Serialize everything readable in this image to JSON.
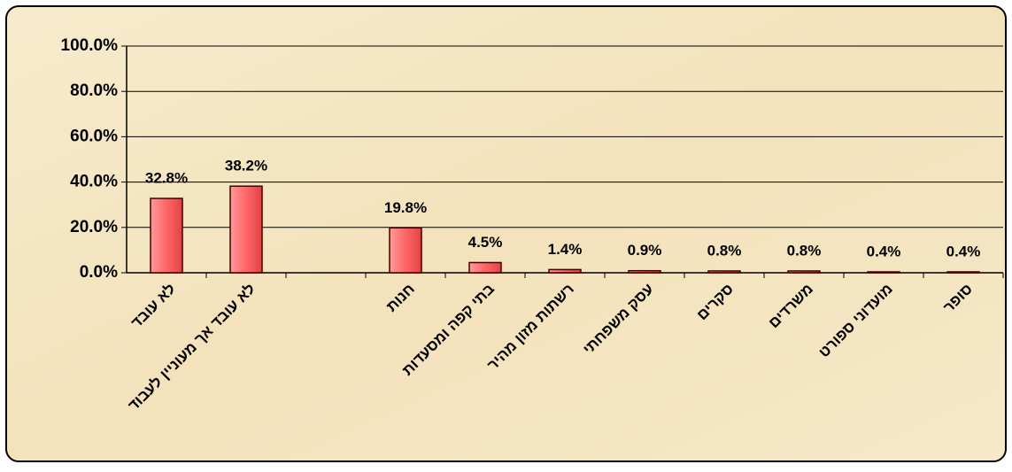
{
  "chart_data": {
    "type": "bar",
    "categories": [
      "לא עובד",
      "לא עובד אך מעוניין לעבוד",
      null,
      "חנות",
      "בתי קפה ומסעדות",
      "רשתות מזון מהיר",
      "עסק משפחתי",
      "סקרים",
      "משרדים",
      "מועדוני ספורט",
      "סופר"
    ],
    "values": [
      32.8,
      38.2,
      null,
      19.8,
      4.5,
      1.4,
      0.9,
      0.8,
      0.8,
      0.4,
      0.4
    ],
    "value_labels": [
      "32.8%",
      "38.2%",
      null,
      "19.8%",
      "4.5%",
      "1.4%",
      "0.9%",
      "0.8%",
      "0.8%",
      "0.4%",
      "0.4%"
    ],
    "color": "#ff6666",
    "ylim": [
      0,
      100
    ],
    "yticks": [
      {
        "value": 0,
        "label": "0.0%"
      },
      {
        "value": 20,
        "label": "20.0%"
      },
      {
        "value": 40,
        "label": "40.0%"
      },
      {
        "value": 60,
        "label": "60.0%"
      },
      {
        "value": 80,
        "label": "80.0%"
      },
      {
        "value": 100,
        "label": "100.0%"
      }
    ],
    "grid": true
  }
}
